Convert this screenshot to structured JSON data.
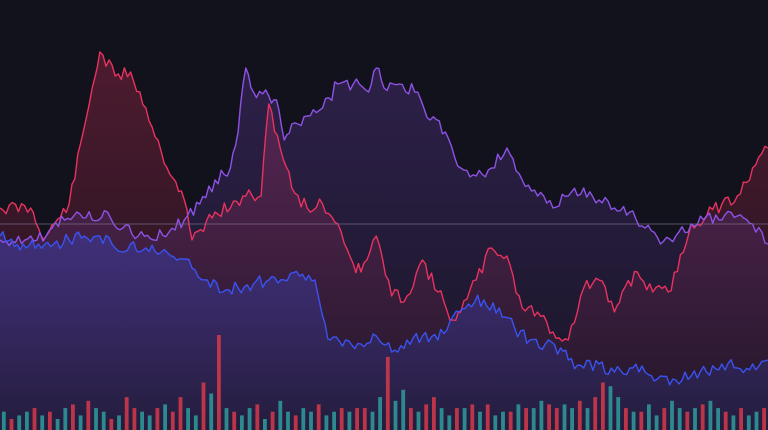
{
  "colors": {
    "background": "#12121c",
    "red_series": "#e8325f",
    "purple_series": "#8e52e6",
    "blue_series": "#3a52f0",
    "volume_up": "#2e9c9c",
    "volume_down": "#d63a4a",
    "reference_line": "#7b6a8a"
  },
  "chart_data": {
    "type": "line",
    "xlabel": "",
    "ylabel": "",
    "x_range": [
      0,
      100
    ],
    "ylim": [
      0,
      100
    ],
    "grid": false,
    "legend": "none",
    "reference_line": {
      "y": 49
    },
    "series": [
      {
        "color": "#e8325f",
        "x": [
          0,
          4,
          5,
          6,
          9,
          12,
          13,
          15,
          17,
          19,
          21,
          24,
          25,
          28,
          30,
          32,
          34,
          35,
          38,
          40,
          42,
          44,
          46,
          47,
          49,
          51,
          53,
          55,
          57,
          59,
          60,
          62,
          64,
          66,
          68,
          70,
          72,
          74,
          76,
          78,
          80,
          81,
          83,
          85,
          87,
          89,
          90,
          92,
          94,
          96,
          98,
          100
        ],
        "y": [
          53,
          53,
          48,
          46,
          54,
          83,
          92,
          86,
          87,
          78,
          67,
          55,
          45,
          52,
          53,
          56,
          56,
          79,
          58,
          53,
          54,
          49,
          39,
          37,
          46,
          31,
          31,
          40,
          32,
          25,
          27,
          35,
          43,
          41,
          28,
          27,
          22,
          20,
          33,
          35,
          27,
          32,
          37,
          32,
          32,
          42,
          49,
          51,
          54,
          56,
          63,
          68
        ]
      },
      {
        "color": "#8e52e6",
        "x": [
          0,
          4,
          6,
          8,
          10,
          12,
          14,
          16,
          18,
          20,
          22,
          24,
          26,
          28,
          30,
          31,
          32,
          33,
          35,
          36,
          37,
          38,
          40,
          42,
          44,
          46,
          48,
          49,
          50,
          52,
          54,
          56,
          58,
          60,
          62,
          64,
          66,
          68,
          70,
          72,
          74,
          76,
          78,
          80,
          82,
          84,
          86,
          88,
          90,
          92,
          94,
          96,
          98,
          100
        ],
        "y": [
          45,
          46,
          46,
          51,
          52,
          50,
          52,
          48,
          46,
          45,
          47,
          50,
          54,
          60,
          63,
          72,
          88,
          82,
          81,
          80,
          70,
          74,
          76,
          78,
          84,
          84,
          82,
          88,
          83,
          84,
          82,
          75,
          72,
          63,
          61,
          63,
          68,
          60,
          56,
          53,
          56,
          58,
          55,
          53,
          52,
          48,
          44,
          46,
          49,
          51,
          50,
          51,
          49,
          44
        ]
      },
      {
        "color": "#3a52f0",
        "x": [
          0,
          3,
          5,
          7,
          9,
          11,
          13,
          15,
          17,
          19,
          21,
          23,
          25,
          27,
          29,
          31,
          33,
          35,
          37,
          39,
          41,
          42,
          43,
          45,
          47,
          49,
          51,
          53,
          55,
          57,
          59,
          61,
          63,
          65,
          67,
          69,
          71,
          73,
          74,
          76,
          78,
          80,
          82,
          84,
          86,
          88,
          90,
          92,
          94,
          96,
          98,
          100
        ],
        "y": [
          46,
          44,
          44,
          44,
          45,
          46,
          46,
          43,
          44,
          43,
          42,
          40,
          38,
          35,
          32,
          33,
          34,
          35,
          35,
          36,
          35,
          26,
          20,
          20,
          19,
          21,
          17,
          20,
          21,
          20,
          26,
          29,
          30,
          28,
          23,
          20,
          19,
          18,
          15,
          13,
          14,
          12,
          13,
          12,
          11,
          10,
          11,
          12,
          14,
          13,
          14,
          15
        ]
      }
    ],
    "volume": {
      "count": 100,
      "values": [
        5,
        3,
        4,
        5,
        6,
        4,
        5,
        3,
        6,
        7,
        4,
        8,
        6,
        5,
        3,
        4,
        9,
        6,
        5,
        4,
        6,
        7,
        5,
        9,
        6,
        4,
        13,
        10,
        26,
        6,
        5,
        4,
        6,
        7,
        3,
        5,
        8,
        5,
        4,
        6,
        5,
        7,
        4,
        5,
        6,
        5,
        6,
        6,
        5,
        9,
        20,
        8,
        11,
        6,
        5,
        7,
        9,
        6,
        4,
        6,
        6,
        7,
        5,
        7,
        4,
        5,
        5,
        7,
        6,
        6,
        8,
        7,
        6,
        7,
        6,
        8,
        6,
        9,
        13,
        12,
        9,
        6,
        5,
        5,
        7,
        4,
        6,
        8,
        6,
        5,
        6,
        7,
        8,
        6,
        5,
        4,
        6,
        4,
        5,
        6
      ],
      "up": [
        1,
        0,
        1,
        1,
        0,
        1,
        0,
        1,
        1,
        0,
        1,
        0,
        1,
        1,
        0,
        1,
        0,
        0,
        1,
        1,
        0,
        1,
        0,
        0,
        1,
        1,
        0,
        1,
        0,
        1,
        0,
        1,
        1,
        0,
        1,
        0,
        1,
        1,
        0,
        1,
        1,
        0,
        1,
        1,
        0,
        1,
        0,
        0,
        1,
        1,
        0,
        1,
        1,
        0,
        1,
        0,
        0,
        1,
        1,
        0,
        1,
        0,
        1,
        0,
        1,
        1,
        0,
        1,
        0,
        1,
        1,
        0,
        0,
        1,
        1,
        0,
        1,
        0,
        0,
        1,
        1,
        0,
        1,
        0,
        1,
        1,
        0,
        1,
        1,
        0,
        1,
        0,
        1,
        1,
        0,
        1,
        0,
        1,
        1,
        0
      ]
    }
  }
}
